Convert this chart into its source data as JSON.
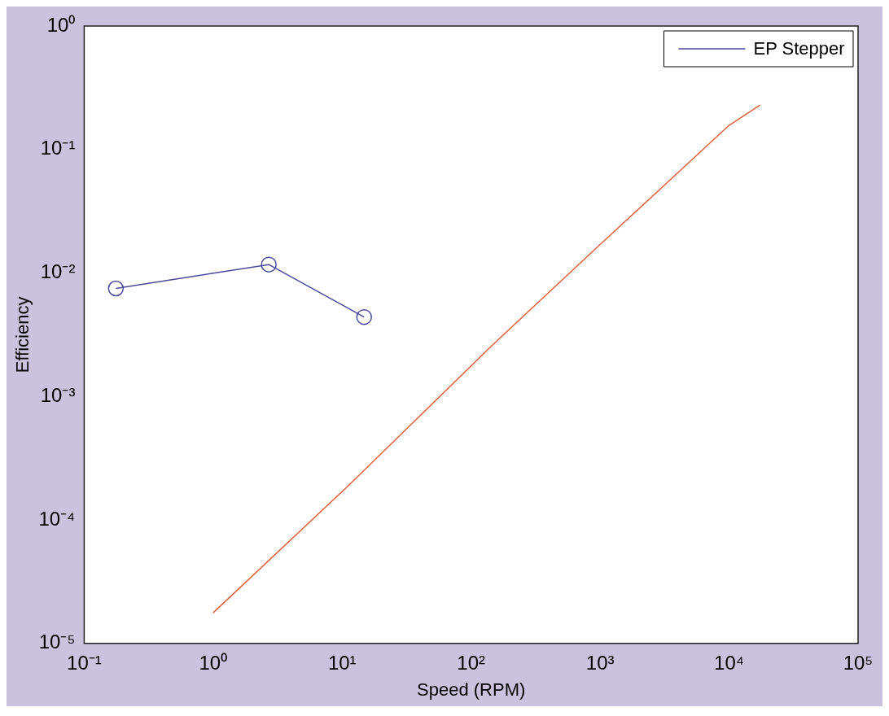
{
  "chart_data": {
    "type": "line",
    "xlabel": "Speed (RPM)",
    "ylabel": "Efficiency",
    "log": "xy",
    "grid": false,
    "legend": "top right",
    "xlim": [
      0.1,
      100000
    ],
    "ylim": [
      1e-05,
      1
    ],
    "xticks": [
      {
        "value": 0.1,
        "label": "10⁻¹"
      },
      {
        "value": 1,
        "label": "10⁰"
      },
      {
        "value": 10,
        "label": "10¹"
      },
      {
        "value": 100,
        "label": "10²"
      },
      {
        "value": 1000,
        "label": "10³"
      },
      {
        "value": 10000,
        "label": "10⁴"
      },
      {
        "value": 100000,
        "label": "10⁵"
      }
    ],
    "yticks": [
      {
        "value": 1e-05,
        "label": "10⁻⁵"
      },
      {
        "value": 0.0001,
        "label": "10⁻⁴"
      },
      {
        "value": 0.001,
        "label": "10⁻³"
      },
      {
        "value": 0.01,
        "label": "10⁻²"
      },
      {
        "value": 0.1,
        "label": "10⁻¹"
      },
      {
        "value": 1,
        "label": "10⁰"
      }
    ],
    "series": [
      {
        "color": "#e0603a",
        "marker": "none",
        "x": [
          1,
          11.2,
          146,
          1000,
          3000,
          10000,
          17400
        ],
        "values": [
          1.77e-05,
          0.00019,
          0.0026,
          0.017,
          0.049,
          0.157,
          0.229
        ]
      },
      {
        "name": "EP Stepper",
        "color": "#4a4a9a",
        "marker": "circle",
        "x": [
          0.176,
          2.7,
          14.8
        ],
        "values": [
          0.0075,
          0.0117,
          0.0044
        ]
      }
    ]
  }
}
